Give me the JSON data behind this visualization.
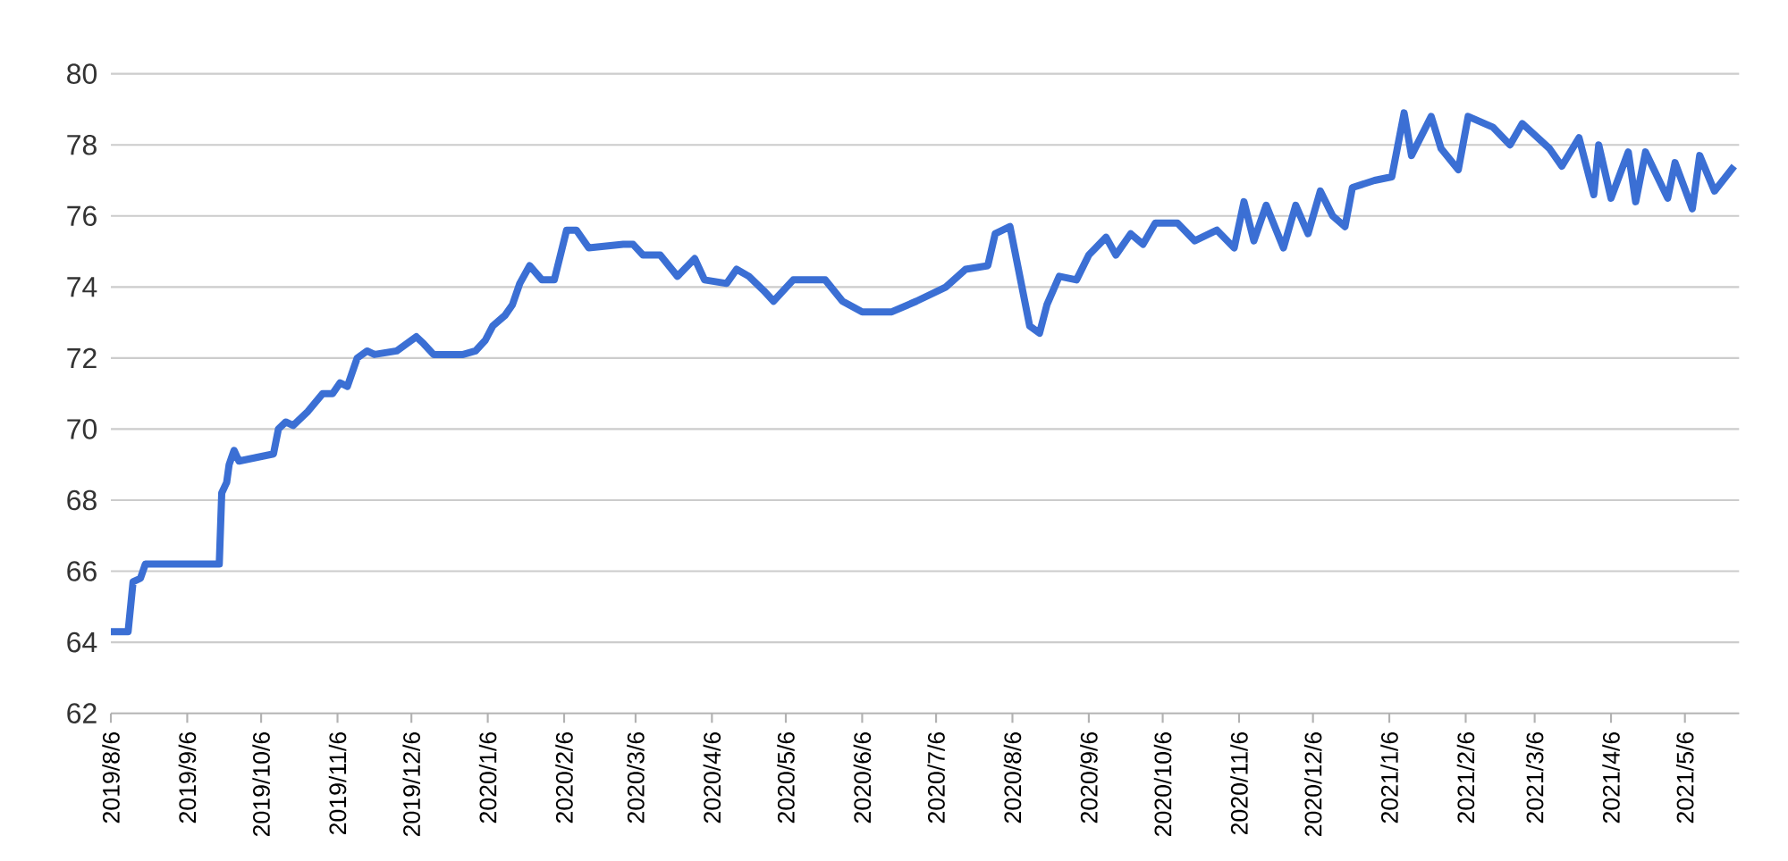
{
  "chart_data": {
    "type": "line",
    "xlim": [
      "2019-08-06",
      "2021-05-28"
    ],
    "ylim": [
      62,
      80
    ],
    "yticks": [
      62,
      64,
      66,
      68,
      70,
      72,
      74,
      76,
      78,
      80
    ],
    "grid": "y",
    "marker": "none",
    "line_style": "solid",
    "xticks": [
      {
        "value": "2019-08-06",
        "label": "2019/8/6"
      },
      {
        "value": "2019-09-06",
        "label": "2019/9/6"
      },
      {
        "value": "2019-10-06",
        "label": "2019/10/6"
      },
      {
        "value": "2019-11-06",
        "label": "2019/11/6"
      },
      {
        "value": "2019-12-06",
        "label": "2019/12/6"
      },
      {
        "value": "2020-01-06",
        "label": "2020/1/6"
      },
      {
        "value": "2020-02-06",
        "label": "2020/2/6"
      },
      {
        "value": "2020-03-06",
        "label": "2020/3/6"
      },
      {
        "value": "2020-04-06",
        "label": "2020/4/6"
      },
      {
        "value": "2020-05-06",
        "label": "2020/5/6"
      },
      {
        "value": "2020-06-06",
        "label": "2020/6/6"
      },
      {
        "value": "2020-07-06",
        "label": "2020/7/6"
      },
      {
        "value": "2020-08-06",
        "label": "2020/8/6"
      },
      {
        "value": "2020-09-06",
        "label": "2020/9/6"
      },
      {
        "value": "2020-10-06",
        "label": "2020/10/6"
      },
      {
        "value": "2020-11-06",
        "label": "2020/11/6"
      },
      {
        "value": "2020-12-06",
        "label": "2020/12/6"
      },
      {
        "value": "2021-01-06",
        "label": "2021/1/6"
      },
      {
        "value": "2021-02-06",
        "label": "2021/2/6"
      },
      {
        "value": "2021-03-06",
        "label": "2021/3/6"
      },
      {
        "value": "2021-04-06",
        "label": "2021/4/6"
      },
      {
        "value": "2021-05-06",
        "label": "2021/5/6"
      }
    ],
    "x": [
      "2019-08-06",
      "2019-08-13",
      "2019-08-15",
      "2019-08-18",
      "2019-08-20",
      "2019-09-19",
      "2019-09-20",
      "2019-09-22",
      "2019-09-23",
      "2019-09-25",
      "2019-09-27",
      "2019-10-04",
      "2019-10-11",
      "2019-10-13",
      "2019-10-16",
      "2019-10-19",
      "2019-10-25",
      "2019-10-31",
      "2019-11-04",
      "2019-11-07",
      "2019-11-10",
      "2019-11-14",
      "2019-11-18",
      "2019-11-21",
      "2019-11-30",
      "2019-12-08",
      "2019-12-11",
      "2019-12-15",
      "2019-12-27",
      "2020-01-01",
      "2020-01-05",
      "2020-01-08",
      "2020-01-13",
      "2020-01-16",
      "2020-01-19",
      "2020-01-23",
      "2020-01-28",
      "2020-02-02",
      "2020-02-07",
      "2020-02-11",
      "2020-02-16",
      "2020-03-01",
      "2020-03-05",
      "2020-03-09",
      "2020-03-16",
      "2020-03-23",
      "2020-03-30",
      "2020-04-03",
      "2020-04-12",
      "2020-04-16",
      "2020-04-21",
      "2020-04-27",
      "2020-05-01",
      "2020-05-09",
      "2020-05-22",
      "2020-05-29",
      "2020-06-06",
      "2020-06-18",
      "2020-06-28",
      "2020-07-10",
      "2020-07-18",
      "2020-07-27",
      "2020-07-30",
      "2020-08-05",
      "2020-08-13",
      "2020-08-17",
      "2020-08-20",
      "2020-08-25",
      "2020-09-01",
      "2020-09-06",
      "2020-09-13",
      "2020-09-17",
      "2020-09-23",
      "2020-09-28",
      "2020-10-03",
      "2020-10-12",
      "2020-10-19",
      "2020-10-28",
      "2020-11-04",
      "2020-11-08",
      "2020-11-12",
      "2020-11-17",
      "2020-11-24",
      "2020-11-29",
      "2020-12-04",
      "2020-12-09",
      "2020-12-14",
      "2020-12-19",
      "2020-12-22",
      "2020-12-31",
      "2021-01-07",
      "2021-01-12",
      "2021-01-15",
      "2021-01-23",
      "2021-01-27",
      "2021-02-03",
      "2021-02-07",
      "2021-02-17",
      "2021-02-24",
      "2021-03-01",
      "2021-03-12",
      "2021-03-17",
      "2021-03-24",
      "2021-03-30",
      "2021-04-01",
      "2021-04-06",
      "2021-04-13",
      "2021-04-16",
      "2021-04-20",
      "2021-04-29",
      "2021-05-02",
      "2021-05-09",
      "2021-05-12",
      "2021-05-18",
      "2021-05-26"
    ],
    "series": [
      {
        "color": "#3b6fd4",
        "values": [
          64.3,
          64.3,
          65.7,
          65.8,
          66.2,
          66.2,
          68.2,
          68.5,
          69.0,
          69.4,
          69.1,
          69.2,
          69.3,
          70.0,
          70.2,
          70.1,
          70.5,
          71.0,
          71.0,
          71.3,
          71.2,
          72.0,
          72.2,
          72.1,
          72.2,
          72.6,
          72.4,
          72.1,
          72.1,
          72.2,
          72.5,
          72.9,
          73.2,
          73.5,
          74.1,
          74.6,
          74.2,
          74.2,
          75.6,
          75.6,
          75.1,
          75.2,
          75.2,
          74.9,
          74.9,
          74.3,
          74.8,
          74.2,
          74.1,
          74.5,
          74.3,
          73.9,
          73.6,
          74.2,
          74.2,
          73.6,
          73.3,
          73.3,
          73.6,
          74.0,
          74.5,
          74.6,
          75.5,
          75.7,
          72.9,
          72.7,
          73.5,
          74.3,
          74.2,
          74.9,
          75.4,
          74.9,
          75.5,
          75.2,
          75.8,
          75.8,
          75.3,
          75.6,
          75.1,
          76.4,
          75.3,
          76.3,
          75.1,
          76.3,
          75.5,
          76.7,
          76.0,
          75.7,
          76.8,
          77.0,
          77.1,
          78.9,
          77.7,
          78.8,
          77.9,
          77.3,
          78.8,
          78.5,
          78.0,
          78.6,
          77.9,
          77.4,
          78.2,
          76.6,
          78.0,
          76.5,
          77.8,
          76.4,
          77.8,
          76.5,
          77.5,
          76.2,
          77.7,
          76.7,
          77.4
        ]
      }
    ]
  }
}
